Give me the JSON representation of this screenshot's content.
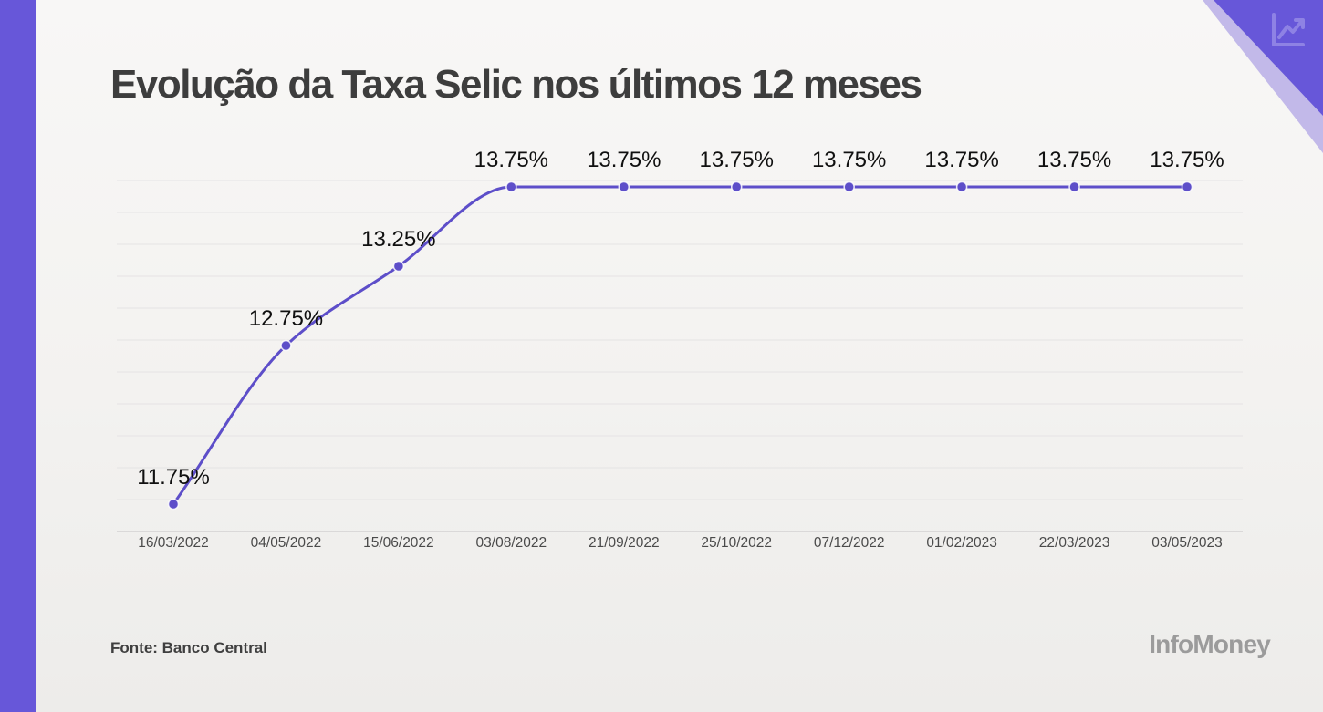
{
  "page": {
    "accent_color": "#6757d9",
    "accent_light_color": "#c2b9e9",
    "line_color": "#5d4ec9",
    "dot_color": "#5d4ec9",
    "grid_color": "#e5e3e4",
    "axis_color": "#d3d1d2",
    "icon_color": "#958ae6"
  },
  "header": {
    "title": "Evolução da Taxa Selic nos últimos 12 meses"
  },
  "chart_data": {
    "type": "line",
    "title": "Evolução da Taxa Selic nos últimos 12 meses",
    "series_name": "Taxa Selic",
    "categories": [
      "16/03/2022",
      "04/05/2022",
      "15/06/2022",
      "03/08/2022",
      "21/09/2022",
      "25/10/2022",
      "07/12/2022",
      "01/02/2023",
      "22/03/2023",
      "03/05/2023"
    ],
    "values": [
      11.75,
      12.75,
      13.25,
      13.75,
      13.75,
      13.75,
      13.75,
      13.75,
      13.75,
      13.75
    ],
    "point_labels": [
      "11.75%",
      "12.75%",
      "13.25%",
      "13.75%",
      "13.75%",
      "13.75%",
      "13.75%",
      "13.75%",
      "13.75%",
      "13.75%"
    ],
    "unit": "%",
    "xlabel": "",
    "ylabel": "",
    "ylim": [
      11.5,
      14.0
    ],
    "grid": "horizontal",
    "legend": "none"
  },
  "footer": {
    "source": "Fonte: Banco Central",
    "brand": "InfoMoney"
  },
  "icons": {
    "corner": "chart-line-icon"
  }
}
